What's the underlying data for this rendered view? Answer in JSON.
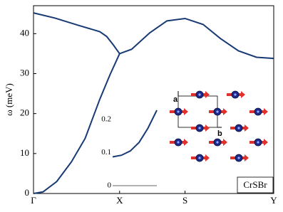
{
  "chart_data": [
    {
      "type": "line",
      "y_label": "ω (meV)",
      "xlim": [
        0,
        2.79
      ],
      "ylim": [
        0,
        47
      ],
      "xticks": [
        {
          "value": 0,
          "label": "Γ"
        },
        {
          "value": 1,
          "label": "X"
        },
        {
          "value": 1.76,
          "label": "S"
        },
        {
          "value": 2.79,
          "label": "Y"
        }
      ],
      "yticks": [
        0,
        10,
        20,
        30,
        40
      ],
      "series": [
        {
          "color": "#173a74",
          "x": [
            0,
            0.25,
            0.52,
            0.77,
            0.85,
            0.93,
            1
          ],
          "values": [
            45.2,
            43.9,
            42.1,
            40.5,
            39.3,
            37.1,
            35.0
          ]
        },
        {
          "color": "#173a74",
          "x": [
            0,
            0.11,
            0.27,
            0.44,
            0.6,
            0.77,
            0.89,
            1
          ],
          "values": [
            0,
            0.4,
            3.0,
            7.9,
            13.8,
            23.6,
            29.8,
            35.0
          ]
        },
        {
          "color": "#173a74",
          "x": [
            1,
            1.14,
            1.35,
            1.55,
            1.76,
            1.97,
            2.17,
            2.38,
            2.59,
            2.79
          ],
          "values": [
            35.0,
            36.1,
            40.2,
            43.2,
            43.8,
            42.3,
            38.8,
            35.7,
            34.1,
            33.8
          ]
        }
      ],
      "annotations": [
        "CrSBr"
      ],
      "lattice_labels": [
        "a",
        "b"
      ]
    },
    {
      "type": "line",
      "xlim": [
        0,
        1
      ],
      "ylim": [
        0,
        0.23
      ],
      "yticks": [
        0,
        0.1,
        0.2
      ],
      "series": [
        {
          "color": "#173a74",
          "x": [
            0,
            0.2,
            0.4,
            0.6,
            0.8,
            1
          ],
          "values": [
            0.087,
            0.092,
            0.105,
            0.131,
            0.174,
            0.228
          ]
        },
        {
          "color": "#333333",
          "x": [
            0,
            1
          ],
          "values": [
            0,
            0
          ]
        }
      ]
    }
  ]
}
